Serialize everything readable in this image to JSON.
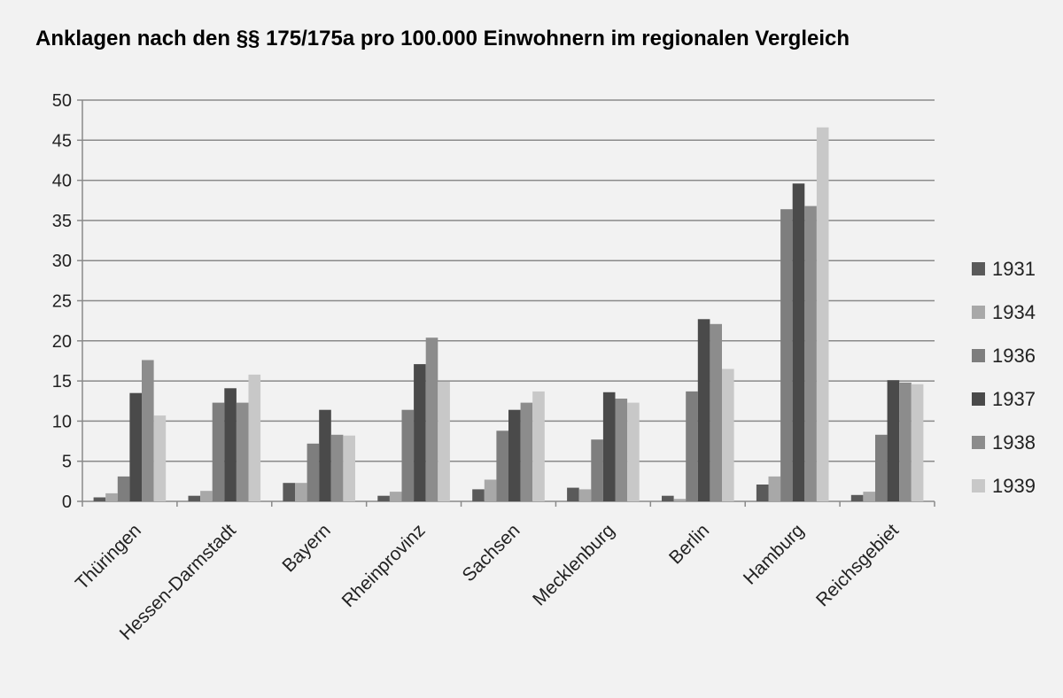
{
  "chart_data": {
    "type": "bar",
    "title": "Anklagen nach den §§ 175/175a pro 100.000 Einwohnern im regionalen Vergleich",
    "xlabel": "",
    "ylabel": "",
    "ylim": [
      0,
      50
    ],
    "yticks": [
      0,
      5,
      10,
      15,
      20,
      25,
      30,
      35,
      40,
      45,
      50
    ],
    "grid": true,
    "legend_position": "right",
    "categories": [
      "Thüringen",
      "Hessen-Darmstadt",
      "Bayern",
      "Rheinprovinz",
      "Sachsen",
      "Mecklenburg",
      "Berlin",
      "Hamburg",
      "Reichsgebiet"
    ],
    "series": [
      {
        "name": "1931",
        "color": "#5a5a5a",
        "values": [
          0.5,
          0.7,
          2.3,
          0.7,
          1.5,
          1.7,
          0.7,
          2.1,
          0.8
        ]
      },
      {
        "name": "1934",
        "color": "#a8a8a8",
        "values": [
          1.0,
          1.3,
          2.3,
          1.2,
          2.7,
          1.5,
          0.3,
          3.1,
          1.2
        ]
      },
      {
        "name": "1936",
        "color": "#7e7e7e",
        "values": [
          3.1,
          12.3,
          7.2,
          11.4,
          8.8,
          7.7,
          13.7,
          36.4,
          8.3
        ]
      },
      {
        "name": "1937",
        "color": "#4a4a4a",
        "values": [
          13.5,
          14.1,
          11.4,
          17.1,
          11.4,
          13.6,
          22.7,
          39.6,
          15.1
        ]
      },
      {
        "name": "1938",
        "color": "#8c8c8c",
        "values": [
          17.6,
          12.3,
          8.3,
          20.4,
          12.3,
          12.8,
          22.1,
          36.8,
          14.8
        ]
      },
      {
        "name": "1939",
        "color": "#c8c8c8",
        "values": [
          10.7,
          15.8,
          8.2,
          14.9,
          13.7,
          12.3,
          16.5,
          46.6,
          14.6
        ]
      }
    ]
  }
}
